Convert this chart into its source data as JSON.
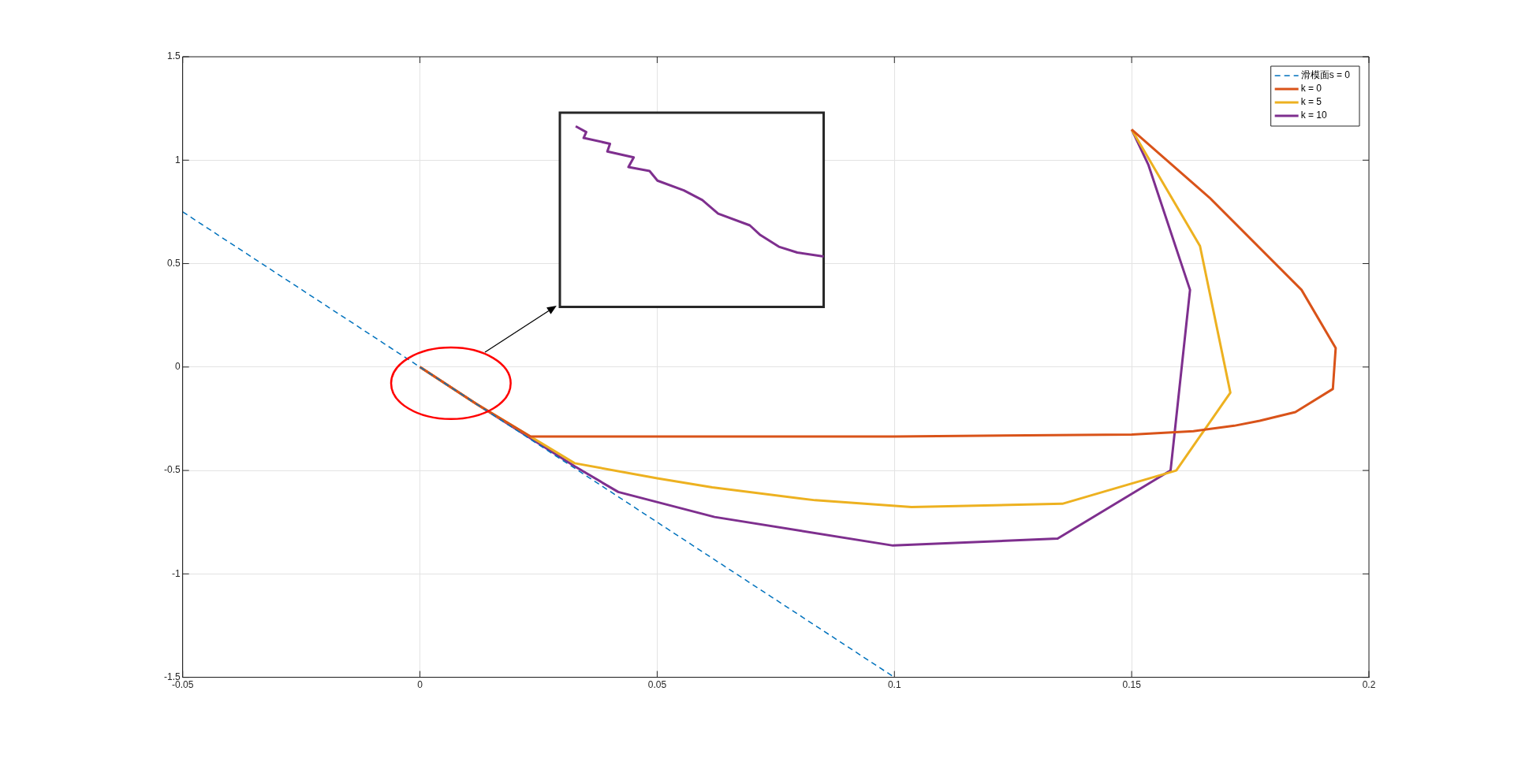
{
  "chart_data": {
    "type": "line",
    "xlim": [
      -0.05,
      0.2
    ],
    "xticks": [
      -0.05,
      0,
      0.05,
      0.1,
      0.15,
      0.2
    ],
    "ylim": [
      -1.5,
      1.5
    ],
    "yticks": [
      -1.5,
      -1,
      -0.5,
      0,
      0.5,
      1,
      1.5
    ],
    "grid": true,
    "legend": "top right",
    "series": [
      {
        "name": "滑模面s = 0",
        "color": "#0072bd",
        "line_style": "dashed",
        "x": [
          -0.05,
          0.1
        ],
        "values": [
          0.75,
          -1.5
        ]
      },
      {
        "name": "k = 0",
        "color": "#d95319",
        "x": [
          0.15,
          0.1664,
          0.1858,
          0.193,
          0.1924,
          0.1845,
          0.177,
          0.1716,
          0.163,
          0.15,
          0.1,
          0.0233,
          0.012,
          0
        ],
        "values": [
          1.148,
          0.819,
          0.373,
          0.092,
          -0.106,
          -0.218,
          -0.26,
          -0.284,
          -0.31,
          -0.326,
          -0.336,
          -0.336,
          -0.18,
          0
        ]
      },
      {
        "name": "k = 5",
        "color": "#edb120",
        "x": [
          0.15,
          0.1644,
          0.1708,
          0.1594,
          0.1354,
          0.1036,
          0.0833,
          0.0616,
          0.05,
          0.0326,
          0.012,
          0
        ],
        "values": [
          1.148,
          0.585,
          -0.124,
          -0.5,
          -0.661,
          -0.677,
          -0.644,
          -0.582,
          -0.538,
          -0.465,
          -0.18,
          0
        ]
      },
      {
        "name": "k = 10",
        "color": "#7e2f8e",
        "x": [
          0.15,
          0.1535,
          0.1623,
          0.1582,
          0.1344,
          0.0997,
          0.0621,
          0.0418,
          0.0326,
          0.012,
          0
        ],
        "values": [
          1.148,
          0.979,
          0.373,
          -0.5,
          -0.829,
          -0.863,
          -0.725,
          -0.604,
          -0.48,
          -0.18,
          0
        ]
      }
    ]
  }
}
